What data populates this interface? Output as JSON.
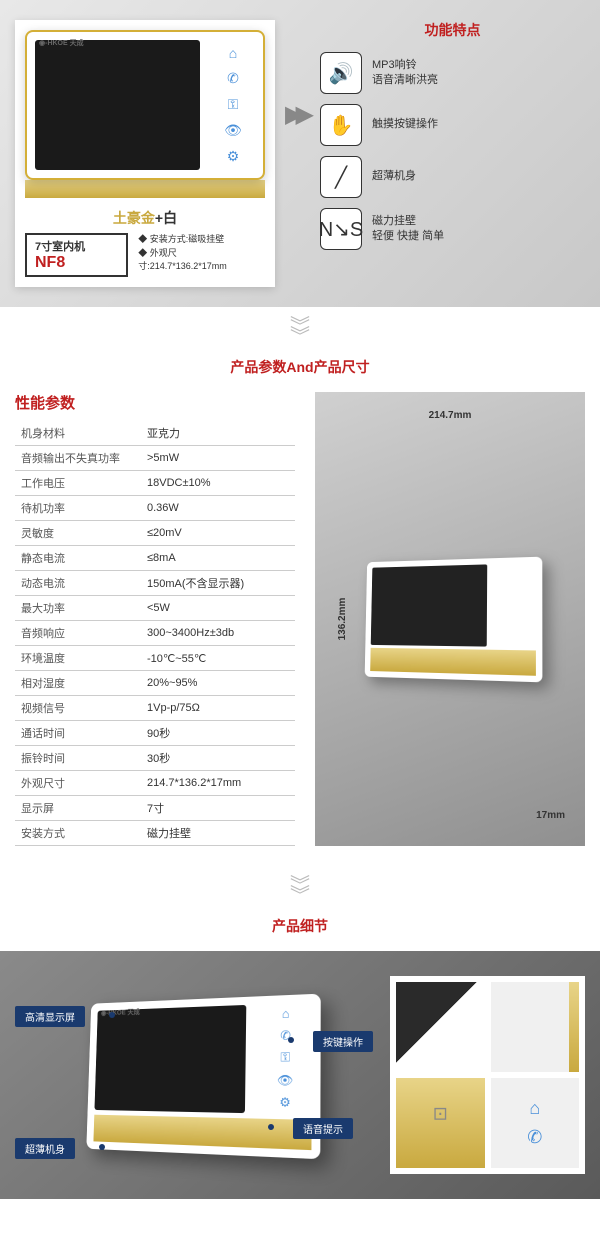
{
  "section1": {
    "product_name_gold": "土豪金",
    "product_name_plus": "+",
    "product_name_white": "白",
    "model_label": "7寸室内机",
    "model_code": "NF8",
    "spec1": "安装方式:磁吸挂壁",
    "spec2": "外观尺寸:214.7*136.2*17mm",
    "features_title": "功能特点",
    "features": [
      {
        "icon": "🔊",
        "line1": "MP3响铃",
        "line2": "语音清晰洪亮"
      },
      {
        "icon": "✋",
        "line1": "触摸按键操作",
        "line2": ""
      },
      {
        "icon": "╱",
        "line1": "超薄机身",
        "line2": ""
      },
      {
        "icon": "N↘S",
        "line1": "磁力挂壁",
        "line2": "轻便 快捷 简单"
      }
    ]
  },
  "section2": {
    "title": "产品参数And产品尺寸",
    "spec_header": "性能参数",
    "specs": [
      {
        "k": "机身材料",
        "v": "亚克力"
      },
      {
        "k": "音频输出不失真功率",
        "v": ">5mW"
      },
      {
        "k": "工作电压",
        "v": "18VDC±10%"
      },
      {
        "k": "待机功率",
        "v": "0.36W"
      },
      {
        "k": "灵敏度",
        "v": "≤20mV"
      },
      {
        "k": "静态电流",
        "v": "≤8mA"
      },
      {
        "k": "动态电流",
        "v": "150mA(不含显示器)"
      },
      {
        "k": "最大功率",
        "v": "<5W"
      },
      {
        "k": "音频响应",
        "v": "300~3400Hz±3db"
      },
      {
        "k": "环境温度",
        "v": "-10℃~55℃"
      },
      {
        "k": "相对湿度",
        "v": "20%~95%"
      },
      {
        "k": "视频信号",
        "v": "1Vp-p/75Ω"
      },
      {
        "k": "通话时间",
        "v": "90秒"
      },
      {
        "k": "振铃时间",
        "v": "30秒"
      },
      {
        "k": "外观尺寸",
        "v": "214.7*136.2*17mm"
      },
      {
        "k": "显示屏",
        "v": "7寸"
      },
      {
        "k": "安装方式",
        "v": "磁力挂壁"
      }
    ],
    "dim_w": "214.7mm",
    "dim_h": "136.2mm",
    "dim_d": "17mm"
  },
  "section3": {
    "title": "产品细节",
    "callouts": {
      "c1": "高清显示屏",
      "c2": "超薄机身",
      "c3": "按键操作",
      "c4": "语音提示"
    }
  },
  "colors": {
    "accent_red": "#c02020",
    "gold": "#c9a93f",
    "callout_bg": "#1a3a6e"
  }
}
